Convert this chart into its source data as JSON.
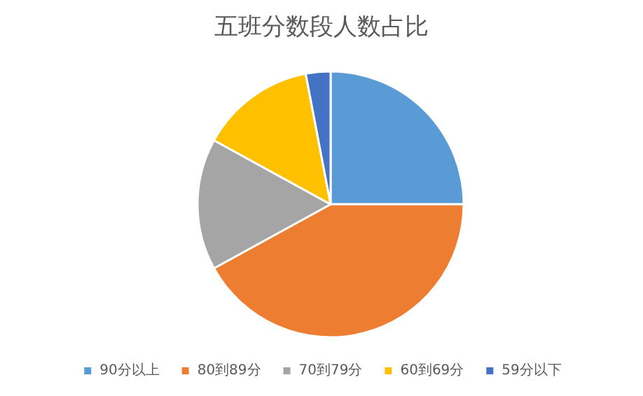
{
  "chart_data": {
    "type": "pie",
    "title": "五班分数段人数占比",
    "categories": [
      "90分以上",
      "80到89分",
      "70到79分",
      "60到69分",
      "59分以下"
    ],
    "values": [
      25,
      42,
      16,
      14,
      3
    ],
    "colors": [
      "#5b9bd5",
      "#ed7d31",
      "#a5a5a5",
      "#ffc000",
      "#4472c4"
    ],
    "legend": "bottom"
  }
}
